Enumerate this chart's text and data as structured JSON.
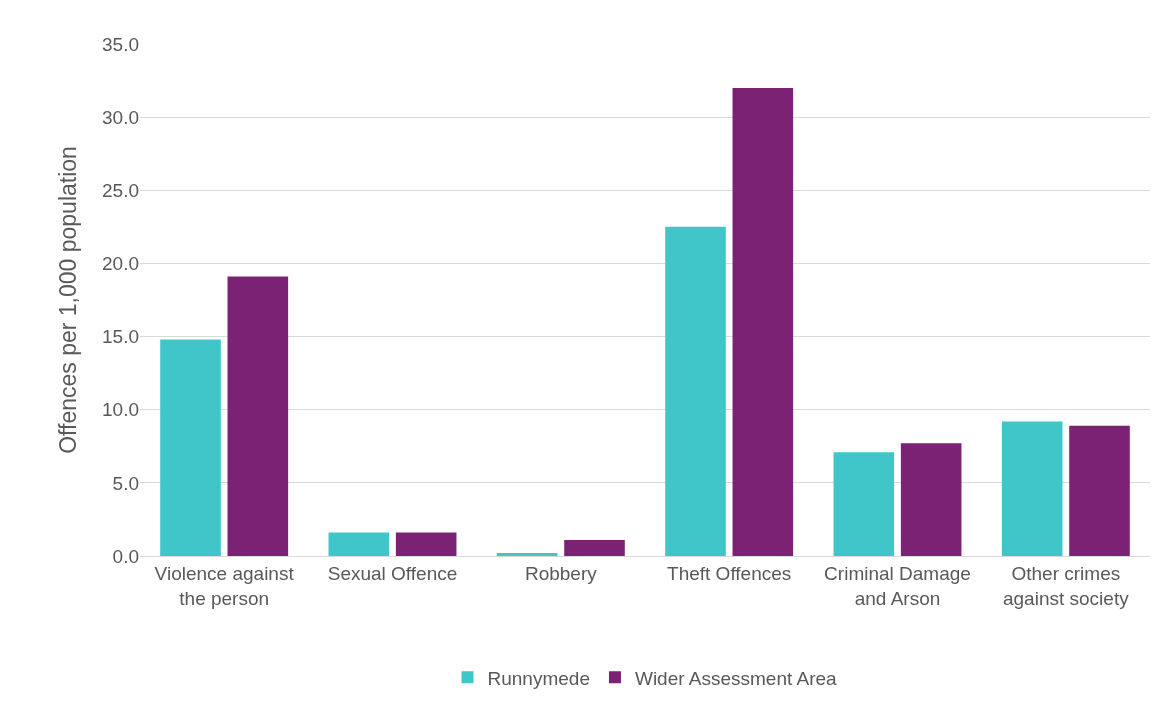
{
  "chart_data": {
    "type": "bar",
    "ylabel": "Offences per 1,000 population",
    "categories": [
      "Violence against the person",
      "Sexual Offence",
      "Robbery",
      "Theft Offences",
      "Criminal Damage and Arson",
      "Other crimes against society"
    ],
    "series": [
      {
        "name": "Runnymede",
        "color": "#40c5c9",
        "values": [
          14.8,
          1.6,
          0.2,
          22.5,
          7.1,
          9.2
        ]
      },
      {
        "name": "Wider Assessment Area",
        "color": "#7b2274",
        "values": [
          19.1,
          1.6,
          1.1,
          32.0,
          7.7,
          8.9
        ]
      }
    ],
    "ylim": [
      0,
      35
    ],
    "yticks": [
      {
        "value": 0,
        "label": "0.0"
      },
      {
        "value": 5,
        "label": "5.0"
      },
      {
        "value": 10,
        "label": "10.0"
      },
      {
        "value": 15,
        "label": "15.0"
      },
      {
        "value": 20,
        "label": "20.0"
      },
      {
        "value": 25,
        "label": "25.0"
      },
      {
        "value": 30,
        "label": "30.0"
      },
      {
        "value": 35,
        "label": "35.0"
      }
    ],
    "grid": "y",
    "legend": "bottom"
  }
}
